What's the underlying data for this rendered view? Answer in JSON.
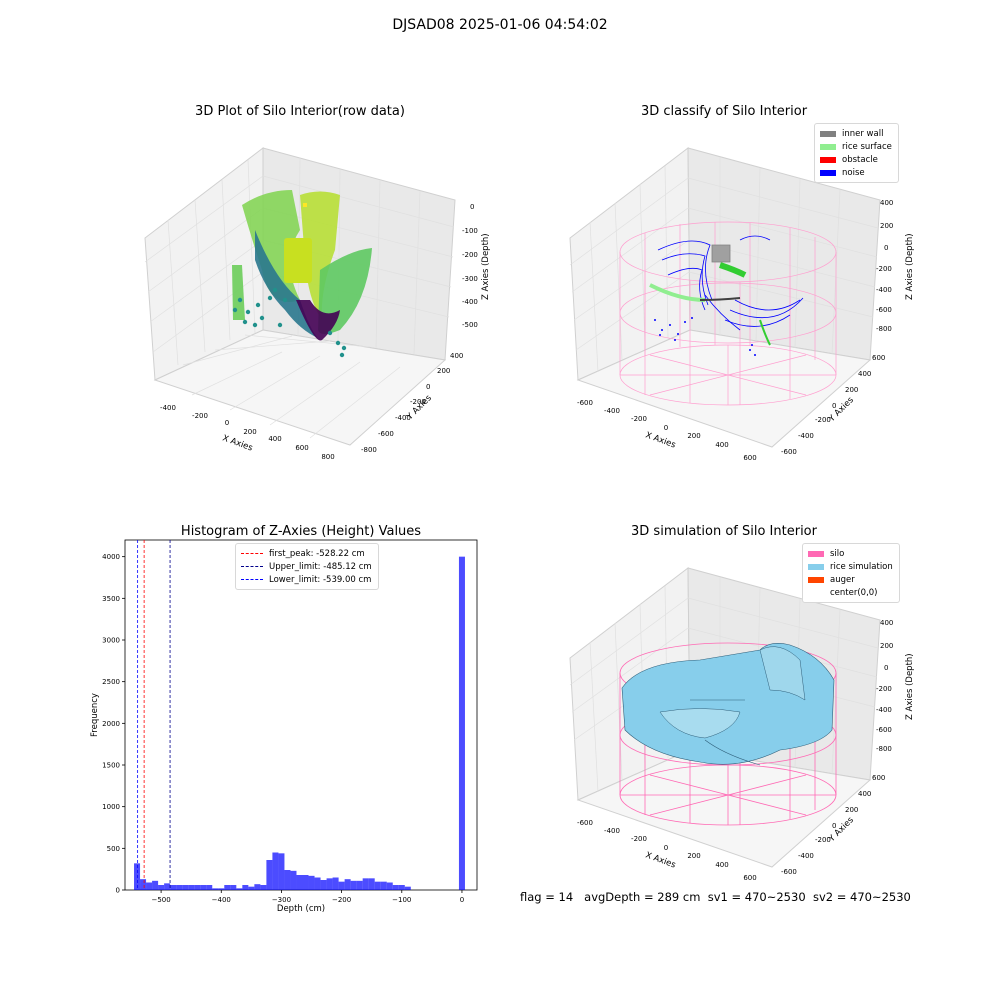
{
  "suptitle": "DJSAD08 2025-01-06 04:54:02",
  "footer": {
    "flag": "flag = 14",
    "avg_depth": "avgDepth = 289 cm",
    "sv1": "sv1 = 470~2530",
    "sv2": "sv2 = 470~2530"
  },
  "panels": {
    "raw": {
      "title": "3D Plot of Silo Interior(row data)",
      "xlabel": "X Axies",
      "ylabel": "Y Axies",
      "zlabel": "Z Axies (Depth)",
      "xticks": [
        "-400",
        "-200",
        "0",
        "200",
        "400",
        "600",
        "800"
      ],
      "yticks": [
        "400",
        "200",
        "0",
        "-200",
        "-400",
        "-600",
        "-800"
      ],
      "zticks": [
        "0",
        "-100",
        "-200",
        "-300",
        "-400",
        "-500"
      ]
    },
    "classify": {
      "title": "3D classify of Silo Interior",
      "xlabel": "X Axies",
      "ylabel": "Y Axies",
      "zlabel": "Z Axies (Depth)",
      "xticks": [
        "-600",
        "-400",
        "-200",
        "0",
        "200",
        "400",
        "600"
      ],
      "yticks": [
        "600",
        "400",
        "200",
        "0",
        "-200",
        "-400",
        "-600"
      ],
      "zticks": [
        "400",
        "200",
        "0",
        "-200",
        "-400",
        "-600",
        "-800"
      ],
      "legend": [
        {
          "label": "inner wall",
          "color": "#808080"
        },
        {
          "label": "rice surface",
          "color": "#90ee90"
        },
        {
          "label": "obstacle",
          "color": "#ff0000"
        },
        {
          "label": "noise",
          "color": "#0000ff"
        }
      ]
    },
    "simulation": {
      "title": "3D simulation of Silo Interior",
      "xlabel": "X Axies",
      "ylabel": "Y Axies",
      "zlabel": "Z Axies (Depth)",
      "xticks": [
        "-600",
        "-400",
        "-200",
        "0",
        "200",
        "400",
        "600"
      ],
      "yticks": [
        "600",
        "400",
        "200",
        "0",
        "-200",
        "-400",
        "-600"
      ],
      "zticks": [
        "400",
        "200",
        "0",
        "-200",
        "-400",
        "-600",
        "-800"
      ],
      "legend": [
        {
          "label": "silo",
          "color": "#ff69b4"
        },
        {
          "label": "rice simulation",
          "color": "#87ceeb"
        },
        {
          "label": "auger",
          "color": "#ff4500"
        },
        {
          "label": "center(0,0)",
          "color": "#ffffff"
        }
      ]
    }
  },
  "chart_data": {
    "type": "bar",
    "title": "Histogram of Z-Axies (Height) Values",
    "xlabel": "Depth (cm)",
    "ylabel": "Frequency",
    "xlim": [
      -560,
      25
    ],
    "ylim": [
      0,
      4200
    ],
    "xticks": [
      -500,
      -400,
      -300,
      -200,
      -100,
      0
    ],
    "yticks": [
      0,
      500,
      1000,
      1500,
      2000,
      2500,
      3000,
      3500,
      4000
    ],
    "bar_color": "#0000ff",
    "bar_width": 10,
    "bins": [
      {
        "x": -540,
        "y": 320
      },
      {
        "x": -530,
        "y": 130
      },
      {
        "x": -520,
        "y": 90
      },
      {
        "x": -510,
        "y": 110
      },
      {
        "x": -500,
        "y": 60
      },
      {
        "x": -490,
        "y": 80
      },
      {
        "x": -480,
        "y": 60
      },
      {
        "x": -470,
        "y": 60
      },
      {
        "x": -460,
        "y": 60
      },
      {
        "x": -450,
        "y": 60
      },
      {
        "x": -440,
        "y": 60
      },
      {
        "x": -430,
        "y": 60
      },
      {
        "x": -420,
        "y": 60
      },
      {
        "x": -410,
        "y": 20
      },
      {
        "x": -400,
        "y": 20
      },
      {
        "x": -390,
        "y": 60
      },
      {
        "x": -380,
        "y": 60
      },
      {
        "x": -370,
        "y": 20
      },
      {
        "x": -360,
        "y": 60
      },
      {
        "x": -350,
        "y": 40
      },
      {
        "x": -340,
        "y": 70
      },
      {
        "x": -330,
        "y": 60
      },
      {
        "x": -320,
        "y": 360
      },
      {
        "x": -310,
        "y": 450
      },
      {
        "x": -300,
        "y": 440
      },
      {
        "x": -290,
        "y": 240
      },
      {
        "x": -280,
        "y": 230
      },
      {
        "x": -270,
        "y": 180
      },
      {
        "x": -260,
        "y": 180
      },
      {
        "x": -250,
        "y": 170
      },
      {
        "x": -240,
        "y": 150
      },
      {
        "x": -230,
        "y": 120
      },
      {
        "x": -220,
        "y": 140
      },
      {
        "x": -210,
        "y": 150
      },
      {
        "x": -200,
        "y": 100
      },
      {
        "x": -190,
        "y": 130
      },
      {
        "x": -180,
        "y": 110
      },
      {
        "x": -170,
        "y": 110
      },
      {
        "x": -160,
        "y": 140
      },
      {
        "x": -150,
        "y": 140
      },
      {
        "x": -140,
        "y": 100
      },
      {
        "x": -130,
        "y": 100
      },
      {
        "x": -120,
        "y": 90
      },
      {
        "x": -110,
        "y": 60
      },
      {
        "x": -100,
        "y": 60
      },
      {
        "x": -90,
        "y": 40
      },
      {
        "x": -80,
        "y": 0
      },
      {
        "x": -70,
        "y": 0
      },
      {
        "x": -60,
        "y": 0
      },
      {
        "x": -50,
        "y": 0
      },
      {
        "x": -40,
        "y": 0
      },
      {
        "x": -30,
        "y": 0
      },
      {
        "x": -20,
        "y": 0
      },
      {
        "x": -10,
        "y": 0
      },
      {
        "x": 0,
        "y": 4000
      }
    ],
    "vlines": [
      {
        "label": "first_peak: -528.22 cm",
        "x": -528.22,
        "color": "#ff0000"
      },
      {
        "label": "Upper_limit: -485.12 cm",
        "x": -485.12,
        "color": "#00008b"
      },
      {
        "label": "Lower_limit: -539.00 cm",
        "x": -539.0,
        "color": "#0000ff"
      }
    ],
    "legend_position": "upper center"
  }
}
